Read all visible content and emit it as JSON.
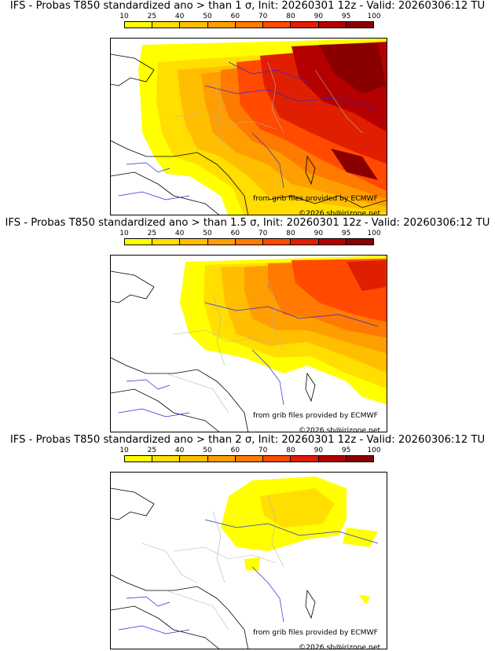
{
  "legend": {
    "ticks": [
      "10",
      "25",
      "40",
      "50",
      "60",
      "70",
      "80",
      "90",
      "95",
      "100"
    ],
    "colors": [
      "#ffff00",
      "#ffde00",
      "#ffbe00",
      "#ff9e00",
      "#ff7a00",
      "#ff4a00",
      "#e01e00",
      "#b40000",
      "#8a0000"
    ]
  },
  "panels": [
    {
      "title": "IFS - Probas T850  standardized ano > than 1 σ, Init: 20260301 12z - Valid: 20260306:12 TU",
      "source_credit": "from grib files provided by ECMWF",
      "copyright": "©2026 sb@irizone.net"
    },
    {
      "title": "IFS - Probas T850  standardized ano > than 1.5 σ, Init: 20260301 12z - Valid: 20260306:12 TU",
      "source_credit": "from grib files provided by ECMWF",
      "copyright": "©2026 sb@irizone.net"
    },
    {
      "title": "IFS - Probas T850  standardized ano > than 2 σ, Init: 20260301 12z - Valid: 20260306:12 TU",
      "source_credit": "from grib files provided by ECMWF",
      "copyright": "©2026 sb@irizone.net"
    }
  ],
  "map_colors": {
    "coast": "#000000",
    "rivers": "#2a2ad8",
    "admin": "#b4b4b4"
  }
}
